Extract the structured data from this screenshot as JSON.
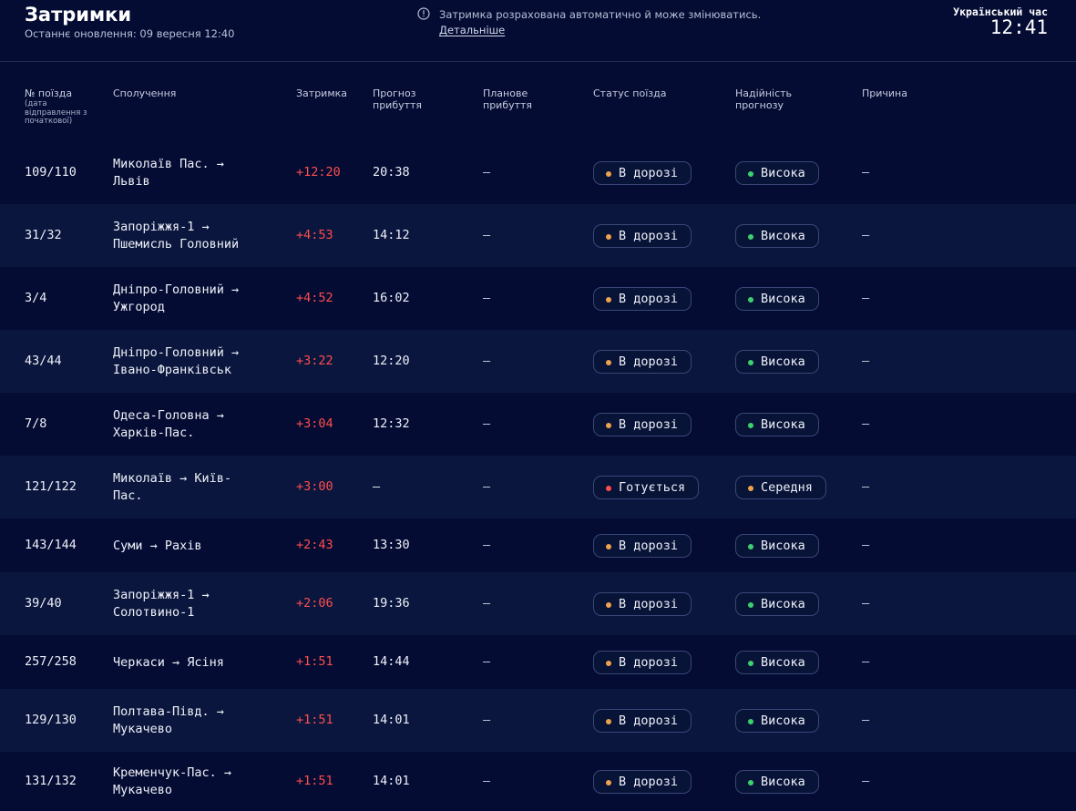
{
  "header": {
    "title": "Затримки",
    "updated": "Останнє оновлення: 09 вересня 12:40",
    "notice": "Затримка розрахована автоматично й може змінюватись.",
    "notice_link": "Детальніше",
    "clock_label": "Український час",
    "clock": "12:41"
  },
  "columns": {
    "train": "№ поїзда",
    "train_note": "(дата відправлення з початкової)",
    "route": "Сполучення",
    "delay": "Затримка",
    "forecast": "Прогноз прибуття",
    "planned": "Планове прибуття",
    "status": "Статус поїзда",
    "reliability": "Надійність прогнозу",
    "reason": "Причина"
  },
  "colors": {
    "background": "#040c33",
    "row_alt": "#0a163d",
    "delay": "#ff4d4d",
    "dot_orange": "#f0a24b",
    "dot_red": "#ff4d4d",
    "dot_green": "#3ecf6e"
  },
  "rows": [
    {
      "train": "109/110",
      "route_from": "Миколаїв Пас. →",
      "route_to": "Львів",
      "delay": "+12:20",
      "forecast": "20:38",
      "planned": "—",
      "status": "В дорозі",
      "status_color": "orange",
      "reliability": "Висока",
      "reliability_color": "green",
      "reason": "—"
    },
    {
      "train": "31/32",
      "route_from": "Запоріжжя-1 →",
      "route_to": "Пшемисль Головний",
      "delay": "+4:53",
      "forecast": "14:12",
      "planned": "—",
      "status": "В дорозі",
      "status_color": "orange",
      "reliability": "Висока",
      "reliability_color": "green",
      "reason": "—"
    },
    {
      "train": "3/4",
      "route_from": "Дніпро-Головний →",
      "route_to": "Ужгород",
      "delay": "+4:52",
      "forecast": "16:02",
      "planned": "—",
      "status": "В дорозі",
      "status_color": "orange",
      "reliability": "Висока",
      "reliability_color": "green",
      "reason": "—"
    },
    {
      "train": "43/44",
      "route_from": "Дніпро-Головний →",
      "route_to": "Івано-Франківськ",
      "delay": "+3:22",
      "forecast": "12:20",
      "planned": "—",
      "status": "В дорозі",
      "status_color": "orange",
      "reliability": "Висока",
      "reliability_color": "green",
      "reason": "—"
    },
    {
      "train": "7/8",
      "route_from": "Одеса-Головна →",
      "route_to": "Харків-Пас.",
      "delay": "+3:04",
      "forecast": "12:32",
      "planned": "—",
      "status": "В дорозі",
      "status_color": "orange",
      "reliability": "Висока",
      "reliability_color": "green",
      "reason": "—"
    },
    {
      "train": "121/122",
      "route_from": "Миколаїв →  Київ-",
      "route_to": "Пас.",
      "delay": "+3:00",
      "forecast": "—",
      "planned": "—",
      "status": "Готується",
      "status_color": "red",
      "reliability": "Середня",
      "reliability_color": "orange",
      "reason": "—"
    },
    {
      "train": "143/144",
      "route_from": "Суми →  Рахів",
      "route_to": "",
      "delay": "+2:43",
      "forecast": "13:30",
      "planned": "—",
      "status": "В дорозі",
      "status_color": "orange",
      "reliability": "Висока",
      "reliability_color": "green",
      "reason": "—"
    },
    {
      "train": "39/40",
      "route_from": "Запоріжжя-1 →",
      "route_to": "Солотвино-1",
      "delay": "+2:06",
      "forecast": "19:36",
      "planned": "—",
      "status": "В дорозі",
      "status_color": "orange",
      "reliability": "Висока",
      "reliability_color": "green",
      "reason": "—"
    },
    {
      "train": "257/258",
      "route_from": "Черкаси →  Ясіня",
      "route_to": "",
      "delay": "+1:51",
      "forecast": "14:44",
      "planned": "—",
      "status": "В дорозі",
      "status_color": "orange",
      "reliability": "Висока",
      "reliability_color": "green",
      "reason": "—"
    },
    {
      "train": "129/130",
      "route_from": "Полтава-Півд. →",
      "route_to": "Мукачево",
      "delay": "+1:51",
      "forecast": "14:01",
      "planned": "—",
      "status": "В дорозі",
      "status_color": "orange",
      "reliability": "Висока",
      "reliability_color": "green",
      "reason": "—"
    },
    {
      "train": "131/132",
      "route_from": "Кременчук-Пас. →",
      "route_to": "Мукачево",
      "delay": "+1:51",
      "forecast": "14:01",
      "planned": "—",
      "status": "В дорозі",
      "status_color": "orange",
      "reliability": "Висока",
      "reliability_color": "green",
      "reason": "—"
    }
  ]
}
